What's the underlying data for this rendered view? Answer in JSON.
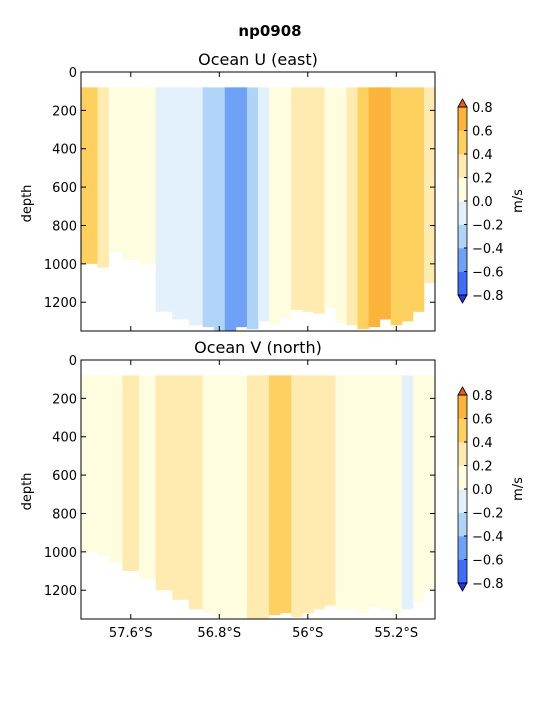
{
  "figure": {
    "suptitle": "np0908"
  },
  "chart_data": [
    {
      "type": "heatmap",
      "title": "Ocean U (east)",
      "xlabel": "",
      "ylabel": "depth",
      "ylim": [
        1350,
        0
      ],
      "yticks": [
        0,
        200,
        400,
        600,
        800,
        1000,
        1200
      ],
      "xlim": [
        58.05,
        54.85
      ],
      "xticks": [
        57.6,
        56.8,
        56.0,
        55.2
      ],
      "xtick_labels": [],
      "y_inverted": true,
      "colorbar": {
        "label": "m/s",
        "levels": [
          -0.8,
          -0.6,
          -0.4,
          -0.2,
          0.0,
          0.2,
          0.4,
          0.6,
          0.8
        ],
        "tick_labels": [
          "−0.8",
          "−0.6",
          "−0.4",
          "−0.2",
          "0.0",
          "0.2",
          "0.4",
          "0.6",
          "0.8"
        ],
        "colors": [
          "#2b32e8",
          "#3f6ef5",
          "#6fa2f7",
          "#b0d4f8",
          "#e2f1fb",
          "#fffde0",
          "#ffeab0",
          "#fdd060",
          "#fbb33c",
          "#f7831f",
          "#ef5a13"
        ]
      },
      "surface_depth": 80,
      "x": [
        57.95,
        57.85,
        57.75,
        57.6,
        57.45,
        57.3,
        57.15,
        57.0,
        56.9,
        56.8,
        56.7,
        56.6,
        56.5,
        56.4,
        56.3,
        56.2,
        56.1,
        56.0,
        55.9,
        55.8,
        55.7,
        55.6,
        55.5,
        55.4,
        55.3,
        55.2,
        55.1,
        55.0,
        54.9
      ],
      "bottom_depth": [
        1000,
        1020,
        940,
        980,
        1000,
        1250,
        1290,
        1320,
        1330,
        1350,
        1350,
        1330,
        1340,
        1300,
        1320,
        1280,
        1240,
        1250,
        1260,
        1230,
        1310,
        1320,
        1340,
        1330,
        1290,
        1320,
        1300,
        1250,
        1100
      ],
      "values": [
        0.4,
        0.35,
        0.15,
        0.1,
        0.05,
        -0.05,
        -0.1,
        -0.15,
        -0.25,
        -0.35,
        -0.55,
        -0.45,
        -0.3,
        -0.1,
        0.05,
        0.15,
        0.25,
        0.3,
        0.25,
        0.1,
        0.15,
        0.2,
        0.45,
        0.6,
        0.65,
        0.55,
        0.45,
        0.5,
        0.3
      ]
    },
    {
      "type": "heatmap",
      "title": "Ocean V (north)",
      "xlabel": "",
      "ylabel": "depth",
      "ylim": [
        1350,
        0
      ],
      "yticks": [
        0,
        200,
        400,
        600,
        800,
        1000,
        1200
      ],
      "xlim": [
        58.05,
        54.85
      ],
      "xticks": [
        57.6,
        56.8,
        56.0,
        55.2
      ],
      "xtick_labels": [
        "57.6°S",
        "56.8°S",
        "56°S",
        "55.2°S"
      ],
      "y_inverted": true,
      "colorbar": {
        "label": "m/s",
        "levels": [
          -0.8,
          -0.6,
          -0.4,
          -0.2,
          0.0,
          0.2,
          0.4,
          0.6,
          0.8
        ],
        "tick_labels": [
          "−0.8",
          "−0.6",
          "−0.4",
          "−0.2",
          "0.0",
          "0.2",
          "0.4",
          "0.6",
          "0.8"
        ],
        "colors": [
          "#2b32e8",
          "#3f6ef5",
          "#6fa2f7",
          "#b0d4f8",
          "#e2f1fb",
          "#fffde0",
          "#ffeab0",
          "#fdd060",
          "#fbb33c",
          "#f7831f",
          "#ef5a13"
        ]
      },
      "surface_depth": 80,
      "x": [
        57.95,
        57.85,
        57.75,
        57.6,
        57.45,
        57.3,
        57.15,
        57.0,
        56.9,
        56.8,
        56.7,
        56.6,
        56.5,
        56.4,
        56.3,
        56.2,
        56.1,
        56.0,
        55.9,
        55.8,
        55.7,
        55.6,
        55.5,
        55.4,
        55.3,
        55.2,
        55.1,
        55.0,
        54.9
      ],
      "bottom_depth": [
        1000,
        1020,
        1060,
        1100,
        1140,
        1200,
        1250,
        1300,
        1320,
        1340,
        1350,
        1340,
        1350,
        1350,
        1330,
        1320,
        1340,
        1320,
        1300,
        1280,
        1300,
        1300,
        1320,
        1290,
        1300,
        1320,
        1300,
        1260,
        1200
      ],
      "values": [
        0.05,
        0.1,
        0.15,
        0.2,
        0.15,
        0.25,
        0.3,
        0.2,
        0.15,
        0.05,
        0.1,
        0.15,
        0.25,
        0.35,
        0.5,
        0.45,
        0.35,
        0.3,
        0.25,
        0.3,
        0.15,
        0.1,
        0.05,
        0.1,
        0.05,
        0.0,
        -0.1,
        0.05,
        0.15
      ]
    }
  ]
}
